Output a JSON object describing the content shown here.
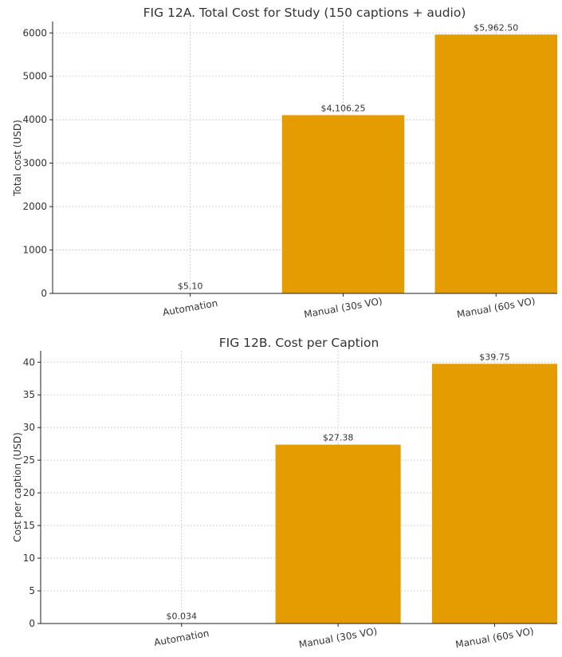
{
  "figure": {
    "bar_color": "#E59C00",
    "grid": true
  },
  "chart_data": [
    {
      "type": "bar",
      "title": "FIG 12A. Total Cost for Study (150 captions + audio)",
      "xlabel": "",
      "ylabel": "Total cost (USD)",
      "categories": [
        "Automation",
        "Manual (30s VO)",
        "Manual (60s VO)"
      ],
      "values": [
        5.1,
        4106.25,
        5962.5
      ],
      "data_labels": [
        "$5.10",
        "$4,106.25",
        "$5,962.50"
      ],
      "ylim": [
        0,
        6262
      ],
      "yticks": [
        0,
        1000,
        2000,
        3000,
        4000,
        5000,
        6000
      ],
      "ytick_labels": [
        "0",
        "1000",
        "2000",
        "3000",
        "4000",
        "5000",
        "6000"
      ]
    },
    {
      "type": "bar",
      "title": "FIG 12B. Cost per Caption",
      "xlabel": "",
      "ylabel": "Cost per caption (USD)",
      "categories": [
        "Automation",
        "Manual (30s VO)",
        "Manual (60s VO)"
      ],
      "values": [
        0.034,
        27.38,
        39.75
      ],
      "data_labels": [
        "$0.034",
        "$27.38",
        "$39.75"
      ],
      "ylim": [
        0,
        41.74
      ],
      "yticks": [
        0,
        5,
        10,
        15,
        20,
        25,
        30,
        35,
        40
      ],
      "ytick_labels": [
        "0",
        "5",
        "10",
        "15",
        "20",
        "25",
        "30",
        "35",
        "40"
      ]
    }
  ]
}
